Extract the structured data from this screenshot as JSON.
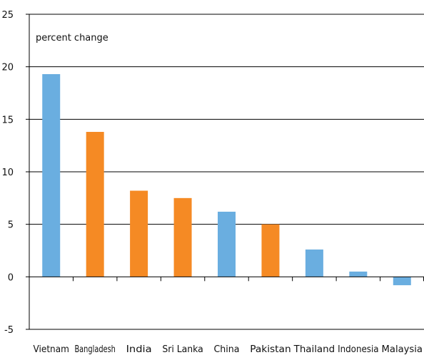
{
  "chart_data": {
    "type": "bar",
    "title": "",
    "xlabel": "",
    "ylabel": "",
    "unit_label": "percent change",
    "categories": [
      "Vietnam",
      "Bangladesh",
      "India",
      "Sri Lanka",
      "China",
      "Pakistan",
      "Thailand",
      "Indonesia",
      "Malaysia"
    ],
    "values": [
      19.3,
      13.8,
      8.2,
      7.5,
      6.2,
      5.0,
      2.6,
      0.5,
      -0.8
    ],
    "bar_colors": [
      "#6aaee0",
      "#f58a24",
      "#f58a24",
      "#f58a24",
      "#6aaee0",
      "#f58a24",
      "#6aaee0",
      "#6aaee0",
      "#6aaee0"
    ],
    "ylim": [
      -5,
      25
    ],
    "yticks": [
      -5,
      0,
      5,
      10,
      15,
      20,
      25
    ],
    "grid": true,
    "legend": "none"
  }
}
